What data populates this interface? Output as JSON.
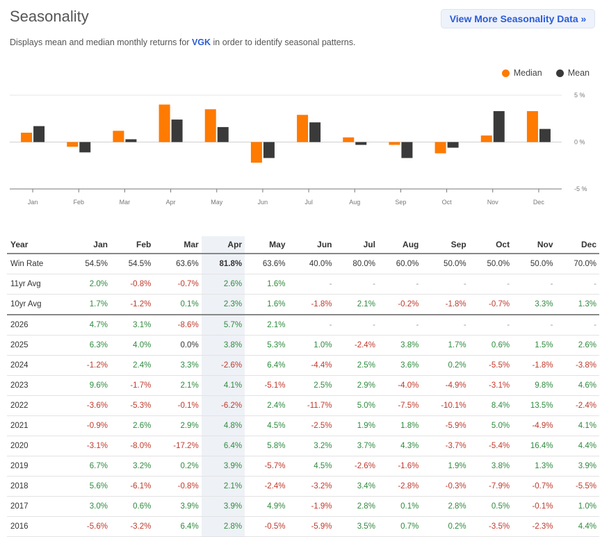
{
  "header": {
    "title": "Seasonality",
    "view_more": "View More Seasonality Data »",
    "subtitle_pre": "Displays mean and median monthly returns for ",
    "ticker": "VGK",
    "subtitle_post": " in order to identify seasonal patterns."
  },
  "legend": {
    "median": "Median",
    "mean": "Mean"
  },
  "colors": {
    "median": "#ff7a00",
    "mean": "#3a3a3a",
    "positive": "#2f8a3e",
    "negative": "#c0392b",
    "link": "#2a5bd7"
  },
  "chart_data": {
    "type": "bar",
    "categories": [
      "Jan",
      "Feb",
      "Mar",
      "Apr",
      "May",
      "Jun",
      "Jul",
      "Aug",
      "Sep",
      "Oct",
      "Nov",
      "Dec"
    ],
    "series": [
      {
        "name": "Median",
        "values": [
          1.0,
          -0.5,
          1.2,
          4.0,
          3.5,
          -2.2,
          2.9,
          0.5,
          -0.3,
          -1.2,
          0.7,
          3.3
        ]
      },
      {
        "name": "Mean",
        "values": [
          1.7,
          -1.1,
          0.3,
          2.4,
          1.6,
          -1.7,
          2.1,
          -0.3,
          -1.7,
          -0.6,
          3.3,
          1.4
        ]
      }
    ],
    "ylim": [
      -5,
      5
    ],
    "yticks": [
      "5 %",
      "0 %",
      "-5 %"
    ],
    "ytick_values": [
      5,
      0,
      -5
    ]
  },
  "table": {
    "columns": [
      "Year",
      "Jan",
      "Feb",
      "Mar",
      "Apr",
      "May",
      "Jun",
      "Jul",
      "Aug",
      "Sep",
      "Oct",
      "Nov",
      "Dec"
    ],
    "rows": [
      {
        "label": "Win Rate",
        "values": [
          "54.5%",
          "54.5%",
          "63.6%",
          "81.8%",
          "63.6%",
          "40.0%",
          "80.0%",
          "60.0%",
          "50.0%",
          "50.0%",
          "50.0%",
          "70.0%"
        ],
        "kind": "win"
      },
      {
        "label": "11yr Avg",
        "values": [
          "2.0%",
          "-0.8%",
          "-0.7%",
          "2.6%",
          "1.6%",
          "-",
          "-",
          "-",
          "-",
          "-",
          "-",
          "-"
        ]
      },
      {
        "label": "10yr Avg",
        "values": [
          "1.7%",
          "-1.2%",
          "0.1%",
          "2.3%",
          "1.6%",
          "-1.8%",
          "2.1%",
          "-0.2%",
          "-1.8%",
          "-0.7%",
          "3.3%",
          "1.3%"
        ],
        "sep": true
      },
      {
        "label": "2026",
        "values": [
          "4.7%",
          "3.1%",
          "-8.6%",
          "5.7%",
          "2.1%",
          "-",
          "-",
          "-",
          "-",
          "-",
          "-",
          "-"
        ]
      },
      {
        "label": "2025",
        "values": [
          "6.3%",
          "4.0%",
          "0.0%",
          "3.8%",
          "5.3%",
          "1.0%",
          "-2.4%",
          "3.8%",
          "1.7%",
          "0.6%",
          "1.5%",
          "2.6%"
        ]
      },
      {
        "label": "2024",
        "values": [
          "-1.2%",
          "2.4%",
          "3.3%",
          "-2.6%",
          "6.4%",
          "-4.4%",
          "2.5%",
          "3.6%",
          "0.2%",
          "-5.5%",
          "-1.8%",
          "-3.8%"
        ]
      },
      {
        "label": "2023",
        "values": [
          "9.6%",
          "-1.7%",
          "2.1%",
          "4.1%",
          "-5.1%",
          "2.5%",
          "2.9%",
          "-4.0%",
          "-4.9%",
          "-3.1%",
          "9.8%",
          "4.6%"
        ]
      },
      {
        "label": "2022",
        "values": [
          "-3.6%",
          "-5.3%",
          "-0.1%",
          "-6.2%",
          "2.4%",
          "-11.7%",
          "5.0%",
          "-7.5%",
          "-10.1%",
          "8.4%",
          "13.5%",
          "-2.4%"
        ]
      },
      {
        "label": "2021",
        "values": [
          "-0.9%",
          "2.6%",
          "2.9%",
          "4.8%",
          "4.5%",
          "-2.5%",
          "1.9%",
          "1.8%",
          "-5.9%",
          "5.0%",
          "-4.9%",
          "4.1%"
        ]
      },
      {
        "label": "2020",
        "values": [
          "-3.1%",
          "-8.0%",
          "-17.2%",
          "6.4%",
          "5.8%",
          "3.2%",
          "3.7%",
          "4.3%",
          "-3.7%",
          "-5.4%",
          "16.4%",
          "4.4%"
        ]
      },
      {
        "label": "2019",
        "values": [
          "6.7%",
          "3.2%",
          "0.2%",
          "3.9%",
          "-5.7%",
          "4.5%",
          "-2.6%",
          "-1.6%",
          "1.9%",
          "3.8%",
          "1.3%",
          "3.9%"
        ]
      },
      {
        "label": "2018",
        "values": [
          "5.6%",
          "-6.1%",
          "-0.8%",
          "2.1%",
          "-2.4%",
          "-3.2%",
          "3.4%",
          "-2.8%",
          "-0.3%",
          "-7.9%",
          "-0.7%",
          "-5.5%"
        ]
      },
      {
        "label": "2017",
        "values": [
          "3.0%",
          "0.6%",
          "3.9%",
          "3.9%",
          "4.9%",
          "-1.9%",
          "2.8%",
          "0.1%",
          "2.8%",
          "0.5%",
          "-0.1%",
          "1.0%"
        ]
      },
      {
        "label": "2016",
        "values": [
          "-5.6%",
          "-3.2%",
          "6.4%",
          "2.8%",
          "-0.5%",
          "-5.9%",
          "3.5%",
          "0.7%",
          "0.2%",
          "-3.5%",
          "-2.3%",
          "4.4%"
        ]
      }
    ]
  }
}
